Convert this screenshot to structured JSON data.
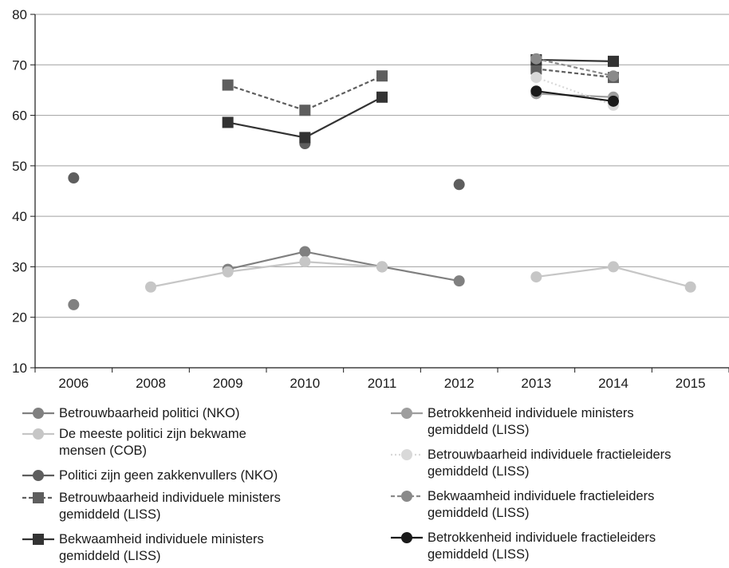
{
  "chart_data": {
    "type": "line",
    "x": [
      "2006",
      "2008",
      "2009",
      "2010",
      "2011",
      "2012",
      "2013",
      "2014",
      "2015"
    ],
    "ylim": [
      10,
      80
    ],
    "yticks": [
      10,
      20,
      30,
      40,
      50,
      60,
      70,
      80
    ],
    "grid": true,
    "legend_position": "bottom",
    "series": [
      {
        "name": "Betrouwbaarheid politici (NKO)",
        "color": "#808080",
        "marker": "circle",
        "dash": "solid",
        "values": [
          22.5,
          null,
          29.5,
          33,
          30,
          27.2,
          null,
          null,
          null
        ]
      },
      {
        "name": "De meeste politici zijn bekwame mensen (COB)",
        "color": "#c6c6c6",
        "marker": "circle",
        "dash": "solid",
        "values": [
          null,
          26,
          29,
          31,
          30,
          null,
          28,
          30,
          26
        ]
      },
      {
        "name": "Politici zijn geen zakkenvullers (NKO)",
        "color": "#5e5e5e",
        "marker": "circle",
        "dash": "solid",
        "values": [
          47.6,
          null,
          null,
          54.4,
          null,
          46.3,
          null,
          null,
          null
        ]
      },
      {
        "name": "Betrouwbaarheid individuele ministers gemiddeld (LISS)",
        "color": "#5e5e5e",
        "marker": "square",
        "dash": "dashed",
        "values": [
          null,
          null,
          66,
          61,
          67.8,
          null,
          69.2,
          67.5,
          null
        ]
      },
      {
        "name": "Bekwaamheid individuele ministers gemiddeld (LISS)",
        "color": "#333333",
        "marker": "square",
        "dash": "solid",
        "values": [
          null,
          null,
          58.6,
          55.6,
          63.6,
          null,
          71,
          70.7,
          null
        ]
      },
      {
        "name": "Betrokkenheid individuele ministers gemiddeld (LISS)",
        "color": "#9e9e9e",
        "marker": "circle",
        "dash": "solid",
        "values": [
          null,
          null,
          null,
          null,
          null,
          null,
          64.3,
          63.6,
          null
        ]
      },
      {
        "name": "Betrouwbaarheid individuele fractieleiders gemiddeld (LISS)",
        "color": "#d9d9d9",
        "marker": "circle",
        "dash": "dotted",
        "values": [
          null,
          null,
          null,
          null,
          null,
          null,
          67.5,
          62,
          null
        ]
      },
      {
        "name": "Bekwaamheid individuele fractieleiders gemiddeld (LISS)",
        "color": "#8a8a8a",
        "marker": "circle",
        "dash": "dashed",
        "values": [
          null,
          null,
          null,
          null,
          null,
          null,
          71.2,
          67.8,
          null
        ]
      },
      {
        "name": "Betrokkenheid individuele fractieleiders gemiddeld (LISS)",
        "color": "#1a1a1a",
        "marker": "circle",
        "dash": "solid",
        "values": [
          null,
          null,
          null,
          null,
          null,
          null,
          64.8,
          62.8,
          null
        ]
      }
    ]
  }
}
